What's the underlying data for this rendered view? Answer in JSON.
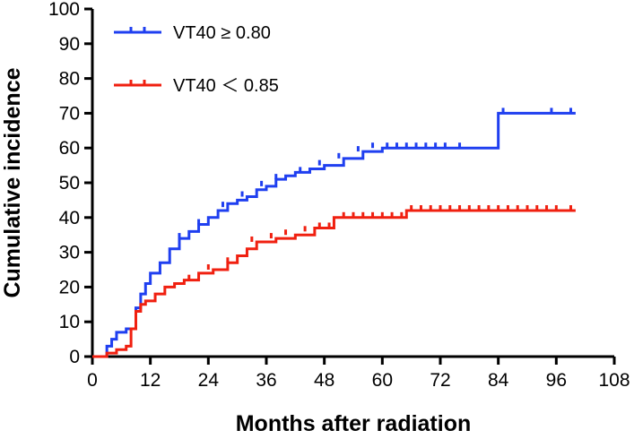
{
  "chart_data": {
    "type": "line",
    "subtype": "kaplan-meier cumulative incidence (step)",
    "title": "",
    "xlabel": "Months after radiation",
    "ylabel": "Cumulative incidence",
    "xlim": [
      0,
      108
    ],
    "ylim": [
      0,
      100
    ],
    "xticks": [
      0,
      12,
      24,
      36,
      48,
      60,
      72,
      84,
      96,
      108
    ],
    "yticks": [
      0,
      10,
      20,
      30,
      40,
      50,
      60,
      70,
      80,
      90,
      100
    ],
    "xtick_labels": [
      "0",
      "12",
      "24",
      "36",
      "48",
      "60",
      "72",
      "84",
      "96",
      "108"
    ],
    "ytick_labels": [
      "0",
      "10",
      "20",
      "30",
      "40",
      "50",
      "60",
      "70",
      "80",
      "90",
      "100"
    ],
    "legend_position": "top-left",
    "series": [
      {
        "name": "VT40 ≥ 0.80",
        "color": "#1f3ff0",
        "x": [
          0,
          3,
          4,
          5,
          7,
          9,
          10,
          11,
          12,
          14,
          16,
          18,
          20,
          22,
          24,
          26,
          28,
          30,
          32,
          34,
          36,
          38,
          40,
          42,
          45,
          48,
          52,
          56,
          60,
          84,
          100
        ],
        "y": [
          0,
          3,
          5,
          7,
          8,
          14,
          18,
          21,
          24,
          27,
          31,
          34,
          36,
          38,
          40,
          42,
          44,
          45,
          46,
          48,
          49,
          51,
          52,
          53,
          54,
          55,
          57,
          59,
          60,
          70,
          70
        ],
        "censor_x": [
          18,
          22,
          27,
          31,
          35,
          38,
          43,
          47,
          51,
          55,
          58,
          61,
          63,
          65,
          67,
          69,
          71,
          73,
          76,
          85,
          95,
          99
        ],
        "censor_y": [
          34,
          38,
          43,
          46,
          49,
          51,
          53,
          55,
          57,
          59,
          60,
          60,
          60,
          60,
          60,
          60,
          60,
          60,
          60,
          70,
          70,
          70
        ]
      },
      {
        "name": "VT40 ＜ 0.85",
        "color": "#f02010",
        "x": [
          0,
          3,
          5,
          7,
          8,
          9,
          10,
          11,
          13,
          15,
          17,
          19,
          22,
          25,
          28,
          30,
          32,
          34,
          38,
          42,
          46,
          50,
          65,
          100
        ],
        "y": [
          0,
          1,
          2,
          3,
          8,
          13,
          15,
          16,
          18,
          20,
          21,
          22,
          24,
          25,
          27,
          29,
          31,
          33,
          34,
          35,
          37,
          40,
          42,
          42
        ],
        "censor_x": [
          20,
          24,
          28,
          33,
          37,
          40,
          44,
          47,
          49,
          52,
          54,
          56,
          58,
          60,
          62,
          64,
          66,
          68,
          70,
          72,
          74,
          76,
          78,
          80,
          82,
          84,
          86,
          88,
          90,
          92,
          94,
          96,
          99
        ],
        "censor_y": [
          22,
          25,
          27,
          33,
          34,
          35,
          36,
          37,
          37,
          40,
          40,
          40,
          40,
          40,
          40,
          40,
          42,
          42,
          42,
          42,
          42,
          42,
          42,
          42,
          42,
          42,
          42,
          42,
          42,
          42,
          42,
          42,
          42
        ]
      }
    ]
  }
}
